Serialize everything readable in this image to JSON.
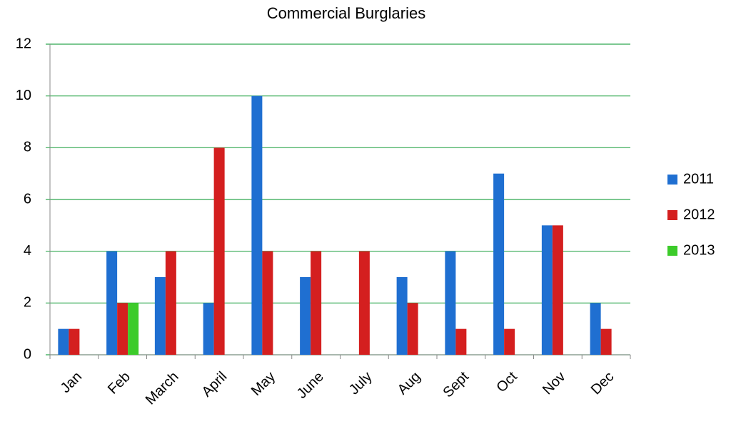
{
  "chart_data": {
    "type": "bar",
    "title": "Commercial Burglaries",
    "categories": [
      "Jan",
      "Feb",
      "March",
      "April",
      "May",
      "June",
      "July",
      "Aug",
      "Sept",
      "Oct",
      "Nov",
      "Dec"
    ],
    "series": [
      {
        "name": "2011",
        "color": "#1f6fd1",
        "values": [
          1,
          4,
          3,
          2,
          10,
          3,
          null,
          3,
          4,
          7,
          5,
          2
        ]
      },
      {
        "name": "2012",
        "color": "#d41f1f",
        "values": [
          1,
          2,
          4,
          8,
          4,
          4,
          4,
          2,
          1,
          1,
          5,
          1
        ]
      },
      {
        "name": "2013",
        "color": "#3ccb2a",
        "values": [
          null,
          2,
          null,
          null,
          null,
          null,
          null,
          null,
          null,
          null,
          null,
          null
        ]
      }
    ],
    "ylim": [
      0,
      12
    ],
    "yticks": [
      0,
      2,
      4,
      6,
      8,
      10,
      12
    ],
    "grid": true,
    "legend": "right"
  }
}
